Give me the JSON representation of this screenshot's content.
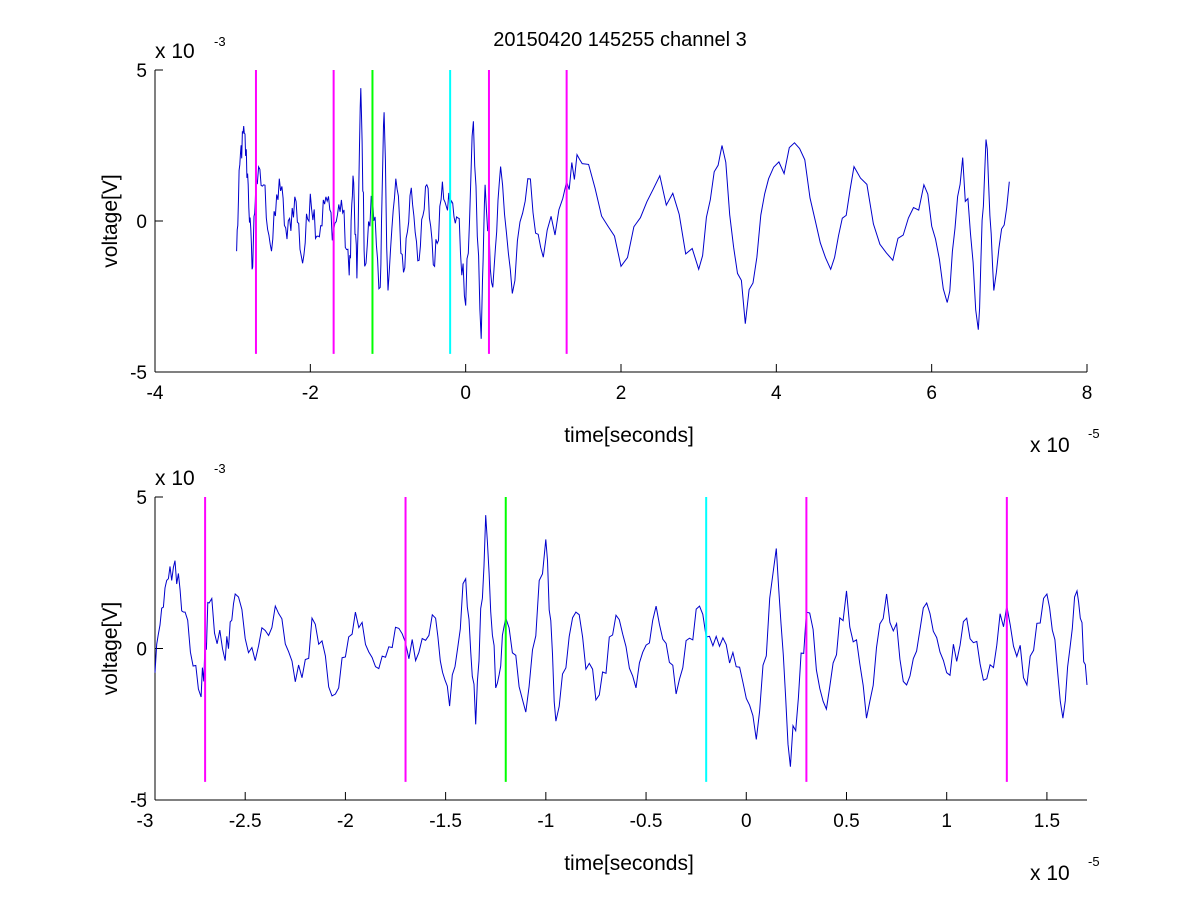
{
  "figure": {
    "title": "20150420 145255 channel 3"
  },
  "chart_data": [
    {
      "type": "line",
      "title": "20150420 145255 channel 3",
      "xlabel": "time[seconds]",
      "ylabel": "voltage[V]",
      "x_multiplier": "x 10",
      "x_exponent": "-5",
      "y_multiplier": "x 10",
      "y_exponent": "-3",
      "xlim": [
        -4e-05,
        8e-05
      ],
      "ylim": [
        -0.005,
        0.005
      ],
      "x_ticks": [
        -4e-05,
        -2e-05,
        0,
        2e-05,
        4e-05,
        6e-05,
        8e-05
      ],
      "x_tick_labels": [
        "-4",
        "-2",
        "0",
        "2",
        "4",
        "6",
        "8"
      ],
      "y_ticks": [
        -0.005,
        0,
        0.005
      ],
      "y_tick_labels": [
        "-5",
        "0",
        "5"
      ],
      "grid": false,
      "legend": "none",
      "series": [
        {
          "color": "#0000cc",
          "x_start": -2.95e-05,
          "x_end": 7e-05,
          "points": [
            [
              -2.95e-05,
              -0.001
            ],
            [
              -2.9e-05,
              0.0022
            ],
            [
              -2.85e-05,
              0.0029
            ],
            [
              -2.8e-05,
              0.0012
            ],
            [
              -2.75e-05,
              -0.0016
            ],
            [
              -2.7e-05,
              0.0014
            ],
            [
              -2.6e-05,
              0.0012
            ],
            [
              -2.5e-05,
              -0.001
            ],
            [
              -2.4e-05,
              0.0014
            ],
            [
              -2.3e-05,
              -0.0006
            ],
            [
              -2.2e-05,
              0.0008
            ],
            [
              -2.1e-05,
              -0.0014
            ],
            [
              -2e-05,
              0.0009
            ],
            [
              -1.9e-05,
              -0.0005
            ],
            [
              -1.8e-05,
              0.0008
            ],
            [
              -1.7e-05,
              -0.0003
            ],
            [
              -1.6e-05,
              0.0007
            ],
            [
              -1.5e-05,
              -0.0018
            ],
            [
              -1.45e-05,
              0.0015
            ],
            [
              -1.4e-05,
              -0.0019
            ],
            [
              -1.35e-05,
              0.0044
            ],
            [
              -1.3e-05,
              -0.0015
            ],
            [
              -1.2e-05,
              0.0008
            ],
            [
              -1.1e-05,
              -0.0022
            ],
            [
              -1.05e-05,
              0.0036
            ],
            [
              -1e-05,
              -0.0023
            ],
            [
              -9e-06,
              0.0014
            ],
            [
              -8e-06,
              -0.0017
            ],
            [
              -7e-06,
              0.0011
            ],
            [
              -6e-06,
              -0.0013
            ],
            [
              -5e-06,
              0.0012
            ],
            [
              -4e-06,
              -0.0015
            ],
            [
              -3e-06,
              0.0013
            ],
            [
              -2e-06,
              0.0005
            ],
            [
              -1e-06,
              0.0001
            ],
            [
              0,
              -0.0028
            ],
            [
              1e-06,
              0.0033
            ],
            [
              2e-06,
              -0.0039
            ],
            [
              2.5e-06,
              0.0012
            ],
            [
              3.5e-06,
              -0.0022
            ],
            [
              4.5e-06,
              0.0018
            ],
            [
              6e-06,
              -0.0024
            ],
            [
              8e-06,
              0.0014
            ],
            [
              1e-05,
              -0.0012
            ],
            [
              1.3e-05,
              0.0013
            ],
            [
              1.5e-05,
              0.0019
            ],
            [
              2e-05,
              -0.0015
            ],
            [
              2.5e-05,
              0.0015
            ],
            [
              3e-05,
              -0.0016
            ],
            [
              3.3e-05,
              0.0025
            ],
            [
              3.6e-05,
              -0.0034
            ],
            [
              3.9e-05,
              0.0014
            ],
            [
              4.3e-05,
              0.0024
            ],
            [
              4.7e-05,
              -0.0016
            ],
            [
              5e-05,
              0.0018
            ],
            [
              5.5e-05,
              -0.0013
            ],
            [
              5.9e-05,
              0.0012
            ],
            [
              6.2e-05,
              -0.0027
            ],
            [
              6.4e-05,
              0.0021
            ],
            [
              6.6e-05,
              -0.0036
            ],
            [
              6.7e-05,
              0.0027
            ],
            [
              6.8e-05,
              -0.0023
            ],
            [
              7e-05,
              0.0013
            ]
          ]
        }
      ],
      "vertical_markers": [
        {
          "x": -2.7e-05,
          "color": "#ff00ff"
        },
        {
          "x": -1.7e-05,
          "color": "#ff00ff"
        },
        {
          "x": -1.2e-05,
          "color": "#00ff00"
        },
        {
          "x": -2e-06,
          "color": "#00ffff"
        },
        {
          "x": 3e-06,
          "color": "#ff00ff"
        },
        {
          "x": 1.3e-05,
          "color": "#ff00ff"
        }
      ],
      "marker_ylim": [
        -0.0044,
        0.005
      ]
    },
    {
      "type": "line",
      "title": "",
      "xlabel": "time[seconds]",
      "ylabel": "voltage[V]",
      "x_multiplier": "x 10",
      "x_exponent": "-5",
      "y_multiplier": "x 10",
      "y_exponent": "-3",
      "xlim": [
        -2.95e-05,
        1.7e-05
      ],
      "ylim": [
        -0.005,
        0.005
      ],
      "x_ticks": [
        -3e-05,
        -2.5e-05,
        -2e-05,
        -1.5e-05,
        -1e-05,
        -5e-06,
        0,
        5e-06,
        1e-05,
        1.5e-05
      ],
      "x_tick_labels": [
        "-3",
        "-2.5",
        "-2",
        "-1.5",
        "-1",
        "-0.5",
        "0",
        "0.5",
        "1",
        "1.5"
      ],
      "y_ticks": [
        -0.005,
        0,
        0.005
      ],
      "y_tick_labels": [
        "-5",
        "0",
        "5"
      ],
      "grid": false,
      "legend": "none",
      "series": [
        {
          "color": "#0000cc",
          "x_start": -2.95e-05,
          "x_end": 1.7e-05,
          "points": [
            [
              -2.95e-05,
              -0.0008
            ],
            [
              -2.9e-05,
              0.002
            ],
            [
              -2.85e-05,
              0.0029
            ],
            [
              -2.8e-05,
              0.0012
            ],
            [
              -2.72e-05,
              -0.0016
            ],
            [
              -2.68e-05,
              0.0015
            ],
            [
              -2.6e-05,
              -0.0004
            ],
            [
              -2.55e-05,
              0.0018
            ],
            [
              -2.45e-05,
              -0.0004
            ],
            [
              -2.35e-05,
              0.0014
            ],
            [
              -2.25e-05,
              -0.0011
            ],
            [
              -2.15e-05,
              0.0008
            ],
            [
              -2.05e-05,
              -0.0015
            ],
            [
              -1.95e-05,
              0.0012
            ],
            [
              -1.85e-05,
              -0.0006
            ],
            [
              -1.75e-05,
              0.0007
            ],
            [
              -1.65e-05,
              -0.0004
            ],
            [
              -1.55e-05,
              0.001
            ],
            [
              -1.48e-05,
              -0.0019
            ],
            [
              -1.4e-05,
              0.0023
            ],
            [
              -1.35e-05,
              -0.0025
            ],
            [
              -1.3e-05,
              0.0044
            ],
            [
              -1.25e-05,
              -0.0013
            ],
            [
              -1.2e-05,
              0.001
            ],
            [
              -1.1e-05,
              -0.0021
            ],
            [
              -1e-05,
              0.0036
            ],
            [
              -9.5e-06,
              -0.0024
            ],
            [
              -8.5e-06,
              0.0012
            ],
            [
              -7.5e-06,
              -0.0017
            ],
            [
              -6.5e-06,
              0.0011
            ],
            [
              -5.5e-06,
              -0.0013
            ],
            [
              -4.5e-06,
              0.0014
            ],
            [
              -3.5e-06,
              -0.0015
            ],
            [
              -2.5e-06,
              0.0013
            ],
            [
              -1.5e-06,
              0.0004
            ],
            [
              -5e-07,
              -0.0006
            ],
            [
              5e-07,
              -0.003
            ],
            [
              1.5e-06,
              0.0033
            ],
            [
              2.2e-06,
              -0.0039
            ],
            [
              3e-06,
              0.0012
            ],
            [
              4e-06,
              -0.002
            ],
            [
              5e-06,
              0.0019
            ],
            [
              6e-06,
              -0.0023
            ],
            [
              7e-06,
              0.0018
            ],
            [
              8e-06,
              -0.0012
            ],
            [
              9e-06,
              0.0015
            ],
            [
              1e-05,
              -0.0008
            ],
            [
              1.1e-05,
              0.001
            ],
            [
              1.2e-05,
              -0.001
            ],
            [
              1.3e-05,
              0.0014
            ],
            [
              1.4e-05,
              -0.0012
            ],
            [
              1.5e-05,
              0.0018
            ],
            [
              1.58e-05,
              -0.0023
            ],
            [
              1.65e-05,
              0.0019
            ],
            [
              1.7e-05,
              -0.0012
            ]
          ]
        }
      ],
      "vertical_markers": [
        {
          "x": -2.7e-05,
          "color": "#ff00ff"
        },
        {
          "x": -1.7e-05,
          "color": "#ff00ff"
        },
        {
          "x": -1.2e-05,
          "color": "#00ff00"
        },
        {
          "x": -2e-06,
          "color": "#00ffff"
        },
        {
          "x": 3e-06,
          "color": "#ff00ff"
        },
        {
          "x": 1.3e-05,
          "color": "#ff00ff"
        }
      ],
      "marker_ylim": [
        -0.0044,
        0.005
      ]
    }
  ]
}
